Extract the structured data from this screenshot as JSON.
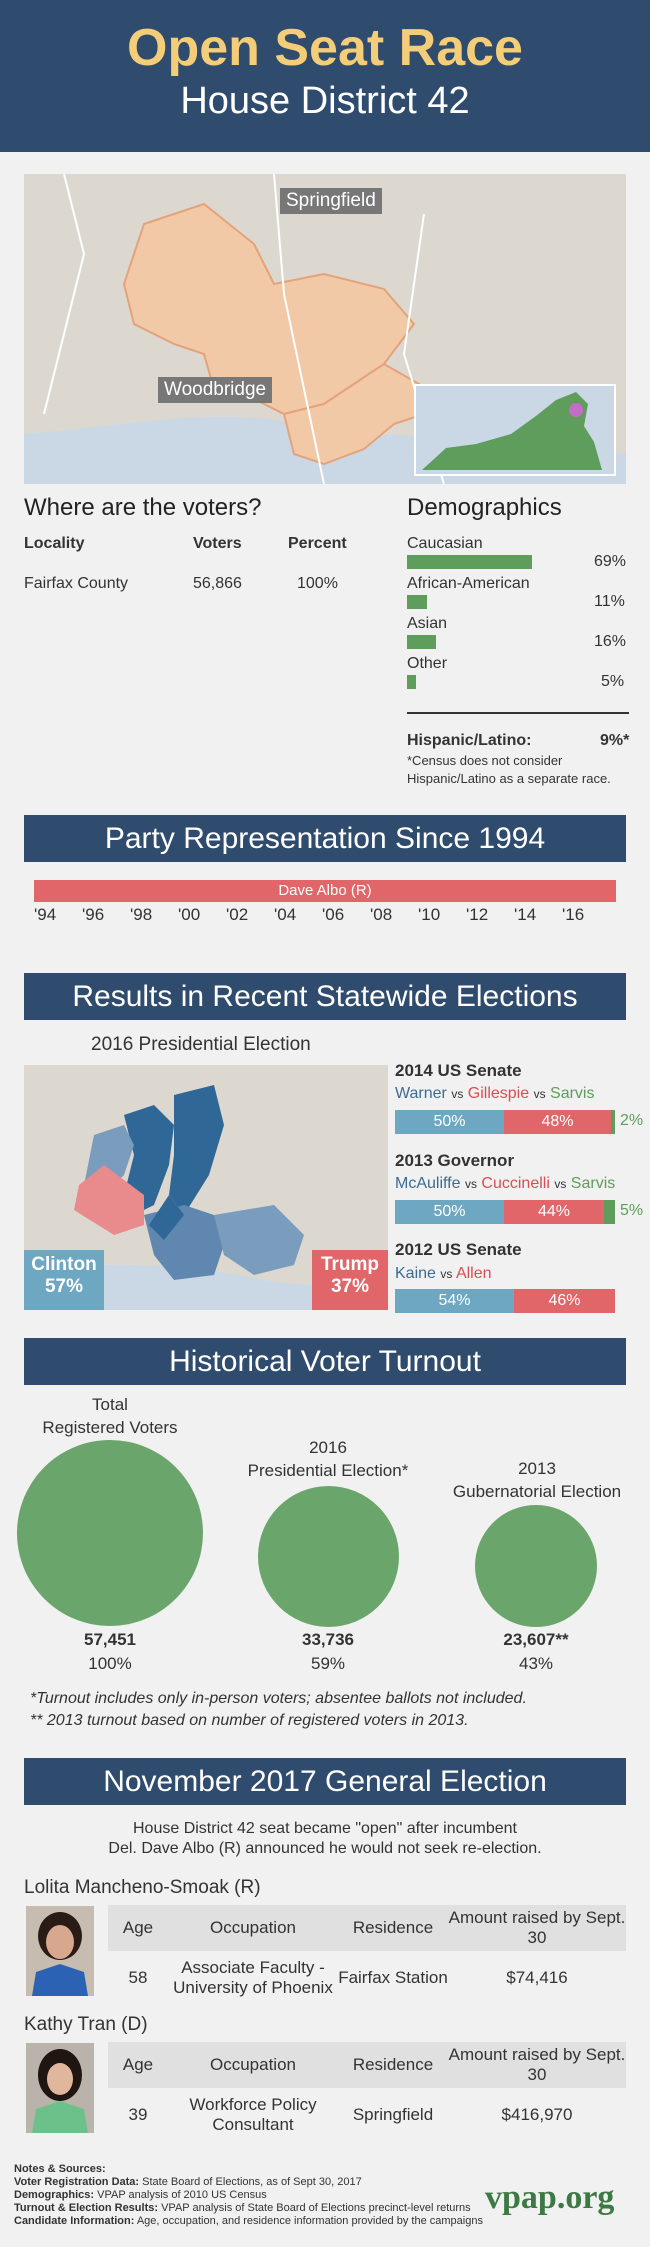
{
  "header": {
    "title": "Open Seat Race",
    "subtitle": "House District 42"
  },
  "top_map": {
    "labels": [
      "Springfield",
      "Woodbridge"
    ]
  },
  "voters": {
    "heading": "Where are the voters?",
    "columns": [
      "Locality",
      "Voters",
      "Percent"
    ],
    "rows": [
      {
        "locality": "Fairfax County",
        "voters": "56,866",
        "percent": "100%"
      }
    ]
  },
  "demographics": {
    "heading": "Demographics",
    "items": [
      {
        "label": "Caucasian",
        "pct": "69%",
        "value": 69
      },
      {
        "label": "African-American",
        "pct": "11%",
        "value": 11
      },
      {
        "label": "Asian",
        "pct": "16%",
        "value": 16
      },
      {
        "label": "Other",
        "pct": "5%",
        "value": 5
      }
    ],
    "hispanic_label": "Hispanic/Latino:",
    "hispanic_pct": "9%*",
    "note": "*Census does not consider Hispanic/Latino as a separate race."
  },
  "party": {
    "heading": "Party Representation Since 1994",
    "bar_label": "Dave Albo (R)",
    "years": [
      "'94",
      "'96",
      "'98",
      "'00",
      "'02",
      "'04",
      "'06",
      "'08",
      "'10",
      "'12",
      "'14",
      "'16"
    ]
  },
  "results": {
    "heading": "Results in Recent Statewide Elections",
    "pres_title": "2016 Presidential Election",
    "clinton": "Clinton",
    "clinton_pct": "57%",
    "trump": "Trump",
    "trump_pct": "37%",
    "senate2014": {
      "title": "2014 US Senate",
      "d": "Warner",
      "vs": "vs",
      "r": "Gillespie",
      "l": "Sarvis",
      "d_pct": "50%",
      "r_pct": "48%",
      "l_pct": "2%"
    },
    "gov2013": {
      "title": "2013 Governor",
      "d": "McAuliffe",
      "vs": "vs",
      "r": "Cuccinelli",
      "l": "Sarvis",
      "d_pct": "50%",
      "r_pct": "44%",
      "l_pct": "5%"
    },
    "senate2012": {
      "title": "2012 US Senate",
      "d": "Kaine",
      "vs": "vs",
      "r": "Allen",
      "d_pct": "54%",
      "r_pct": "46%"
    }
  },
  "turnout": {
    "heading": "Historical Voter Turnout",
    "items": [
      {
        "label1": "Total",
        "label2": "Registered Voters",
        "value": "57,451",
        "pct": "100%"
      },
      {
        "label1": "2016",
        "label2": "Presidential Election*",
        "value": "33,736",
        "pct": "59%"
      },
      {
        "label1": "2013",
        "label2": "Gubernatorial Election",
        "value": "23,607**",
        "pct": "43%"
      }
    ],
    "note1": "*Turnout includes only in-person voters; absentee ballots not included.",
    "note2": "** 2013 turnout based on number of registered voters in 2013."
  },
  "general": {
    "heading": "November 2017 General Election",
    "intro1": "House District 42 seat became \"open\" after incumbent",
    "intro2": "Del. Dave Albo (R) announced he would not seek re-election.",
    "columns": [
      "Age",
      "Occupation",
      "Residence",
      "Amount raised by Sept. 30"
    ],
    "candidates": [
      {
        "name": "Lolita Mancheno-Smoak (R)",
        "age": "58",
        "occupation": "Associate Faculty - University of Phoenix",
        "residence": "Fairfax Station",
        "amount": "$74,416"
      },
      {
        "name": "Kathy Tran (D)",
        "age": "39",
        "occupation": "Workforce Policy Consultant",
        "residence": "Springfield",
        "amount": "$416,970"
      }
    ]
  },
  "notes": {
    "title": "Notes & Sources:",
    "lines": [
      {
        "k": "Voter Registration Data:",
        "v": "State Board of Elections, as of Sept 30, 2017"
      },
      {
        "k": "Demographics:",
        "v": "VPAP analysis of 2010 US Census"
      },
      {
        "k": "Turnout & Election Results:",
        "v": "VPAP analysis of State Board of Elections precinct-level returns"
      },
      {
        "k": "Candidate Information:",
        "v": "Age, occupation, and residence information provided by the campaigns"
      }
    ],
    "logo": "vpap.org"
  },
  "colors": {
    "navy": "#2f4b6e",
    "gold": "#f3cd78",
    "green": "#5e9d5b",
    "red": "#e0666a",
    "blue": "#6da7c2"
  }
}
